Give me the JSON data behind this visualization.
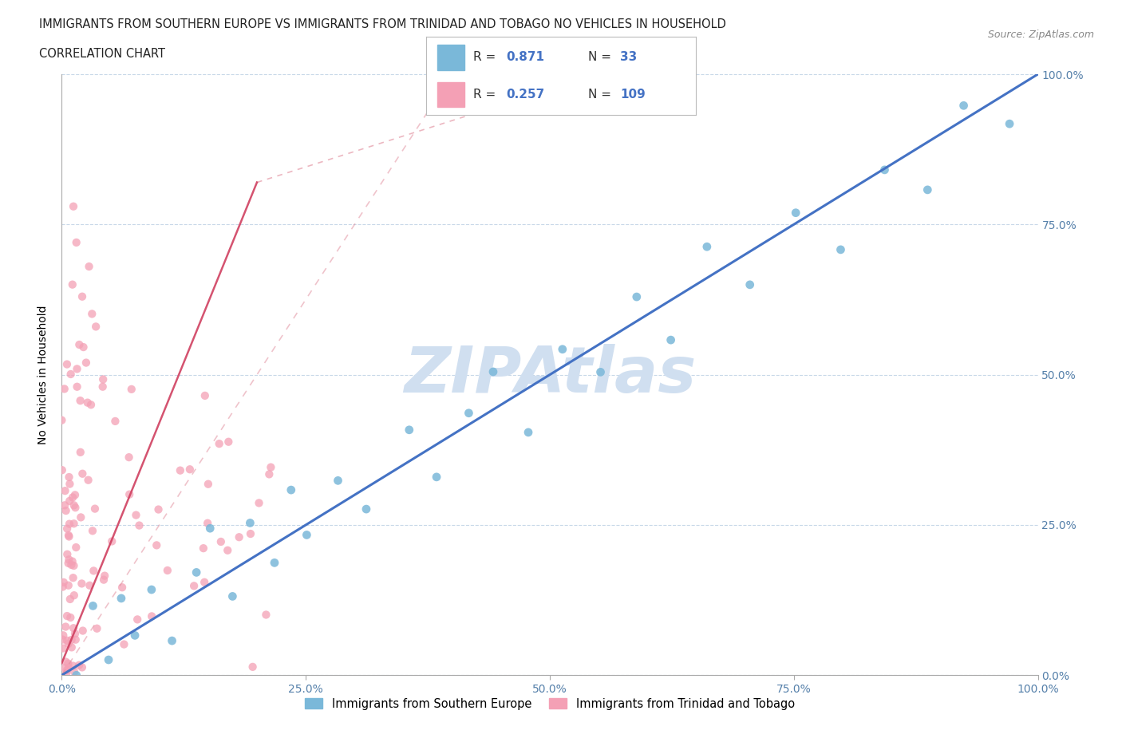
{
  "title_line1": "IMMIGRANTS FROM SOUTHERN EUROPE VS IMMIGRANTS FROM TRINIDAD AND TOBAGO NO VEHICLES IN HOUSEHOLD",
  "title_line2": "CORRELATION CHART",
  "source_text": "Source: ZipAtlas.com",
  "ylabel": "No Vehicles in Household",
  "xlim": [
    0,
    100
  ],
  "ylim": [
    0,
    100
  ],
  "xticks": [
    0,
    25,
    50,
    75,
    100
  ],
  "yticks": [
    0,
    25,
    50,
    75,
    100
  ],
  "xticklabels": [
    "0.0%",
    "25.0%",
    "50.0%",
    "75.0%",
    "100.0%"
  ],
  "yticklabels": [
    "0.0%",
    "25.0%",
    "50.0%",
    "75.0%",
    "100.0%"
  ],
  "series1_color": "#7ab8d9",
  "series2_color": "#f4a0b5",
  "series1_label": "Immigrants from Southern Europe",
  "series2_label": "Immigrants from Trinidad and Tobago",
  "R1": 0.871,
  "N1": 33,
  "R2": 0.257,
  "N2": 109,
  "legend_R_color": "#4472c4",
  "regression_line1_color": "#4472c4",
  "regression_line2_color": "#d04060",
  "regression_line2_dash_color": "#e08898",
  "watermark": "ZIPAtlas",
  "watermark_color": "#d0dff0"
}
